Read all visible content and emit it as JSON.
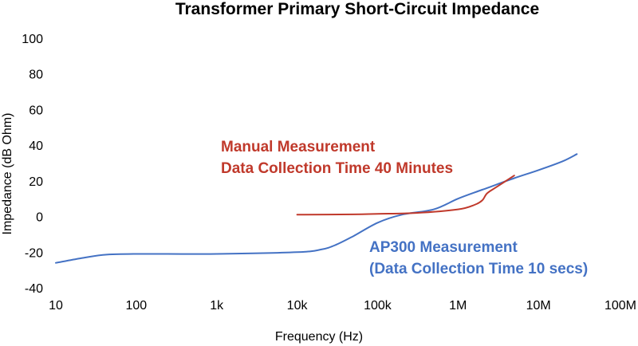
{
  "chart_data": {
    "type": "line",
    "title": "Transformer Primary Short-Circuit Impedance",
    "xlabel": "Frequency (Hz)",
    "ylabel": "Impedance (dB Ohm)",
    "x_scale": "log",
    "xlim": [
      10,
      100000000
    ],
    "ylim": [
      -40,
      100
    ],
    "x_ticks": [
      10,
      100,
      1000,
      10000,
      100000,
      1000000,
      10000000,
      100000000
    ],
    "x_tick_labels": [
      "10",
      "100",
      "1k",
      "10k",
      "100k",
      "1M",
      "10M",
      "100M"
    ],
    "y_ticks": [
      -40,
      -20,
      0,
      20,
      40,
      60,
      80,
      100
    ],
    "y_tick_labels": [
      "-40",
      "-20",
      "0",
      "20",
      "40",
      "60",
      "80",
      "100"
    ],
    "grid": false,
    "legend": "none",
    "series": [
      {
        "color": "#4472c4",
        "x": [
          10,
          20,
          40,
          100,
          1000,
          10000,
          20000,
          30000,
          50000,
          100000,
          200000,
          500000,
          1000000,
          2000000,
          5000000,
          10000000,
          20000000,
          30000000
        ],
        "y": [
          -26,
          -23.5,
          -21.5,
          -21,
          -21,
          -20,
          -18.5,
          -16,
          -11,
          -3.5,
          1,
          4,
          10,
          15,
          21.5,
          26,
          31,
          35
        ]
      },
      {
        "color": "#c0392b",
        "x": [
          10000,
          50000,
          100000,
          300000,
          1000000,
          1600000,
          2000000,
          2300000,
          3000000,
          5000000
        ],
        "y": [
          1,
          1.2,
          1.5,
          2,
          4,
          6.5,
          9,
          13,
          16.5,
          23
        ]
      }
    ],
    "annotations": [
      {
        "lines": [
          "Manual Measurement",
          "Data Collection Time 40 Minutes"
        ],
        "color": "#c0392b"
      },
      {
        "lines": [
          "AP300 Measurement",
          "(Data Collection Time 10 secs)"
        ],
        "color": "#4472c4"
      }
    ]
  }
}
